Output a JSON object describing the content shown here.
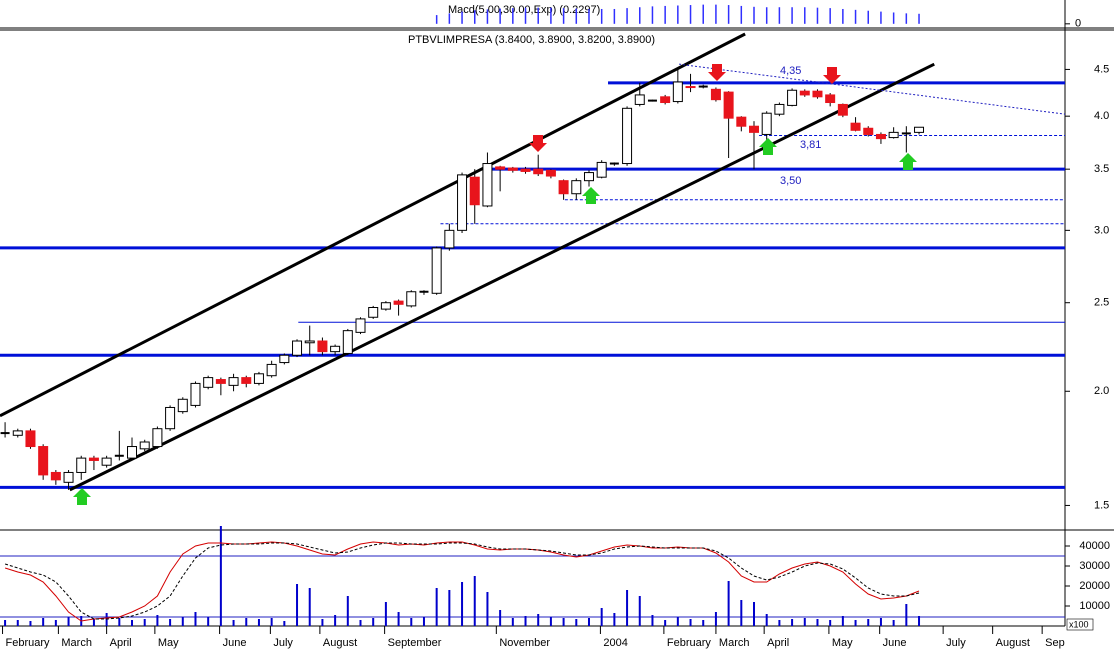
{
  "chart_data": {
    "type": "candlestick",
    "title": "PTBVLIMPRESA (3.8400, 3.8900, 3.8200, 3.8900)",
    "xlim": [
      -0.4,
      83.5
    ],
    "xticks": [
      {
        "value": -0.2,
        "label": "February"
      },
      {
        "value": 4.2,
        "label": "March"
      },
      {
        "value": 8.0,
        "label": "April"
      },
      {
        "value": 11.8,
        "label": "May"
      },
      {
        "value": 16.9,
        "label": "June"
      },
      {
        "value": 20.9,
        "label": "July"
      },
      {
        "value": 24.8,
        "label": "August"
      },
      {
        "value": 29.9,
        "label": "September"
      },
      {
        "value": 38.7,
        "label": "November"
      },
      {
        "value": 46.9,
        "label": "2004"
      },
      {
        "value": 51.9,
        "label": "February"
      },
      {
        "value": 56.0,
        "label": "March"
      },
      {
        "value": 59.8,
        "label": "April"
      },
      {
        "value": 64.9,
        "label": "May"
      },
      {
        "value": 68.9,
        "label": "June"
      },
      {
        "value": 73.9,
        "label": "July"
      },
      {
        "value": 77.8,
        "label": "August"
      },
      {
        "value": 81.7,
        "label": "Sep"
      }
    ],
    "ylim": [
      1.41,
      4.97
    ],
    "yscale": "log",
    "yticks": [
      1.5,
      {
        "value": 2.0,
        "label": "2.0"
      },
      2.5,
      {
        "value": 3.0,
        "label": "3.0"
      },
      3.5,
      {
        "value": 4.0,
        "label": "4.0"
      },
      4.5
    ],
    "up_color": "#ffffff",
    "down_color": "#e8141c",
    "open": [
      1.8,
      1.79,
      1.81,
      1.74,
      1.63,
      1.59,
      1.63,
      1.69,
      1.66,
      1.7,
      1.69,
      1.73,
      1.74,
      1.82,
      1.9,
      1.93,
      2.02,
      2.06,
      2.03,
      2.07,
      2.04,
      2.08,
      2.15,
      2.19,
      2.26,
      2.27,
      2.21,
      2.2,
      2.32,
      2.41,
      2.46,
      2.51,
      2.48,
      2.57,
      2.56,
      2.87,
      3.0,
      3.43,
      3.19,
      3.52,
      3.51,
      3.5,
      3.5,
      3.49,
      3.4,
      3.29,
      3.4,
      3.43,
      3.55,
      3.55,
      4.12,
      4.16,
      4.2,
      4.15,
      4.31,
      4.31,
      4.28,
      4.25,
      3.99,
      3.9,
      3.82,
      4.02,
      4.11,
      4.26,
      4.26,
      4.22,
      4.12,
      3.93,
      3.88,
      3.82,
      3.79,
      3.83,
      3.84
    ],
    "high": [
      1.85,
      1.82,
      1.82,
      1.75,
      1.64,
      1.64,
      1.7,
      1.7,
      1.7,
      1.81,
      1.78,
      1.77,
      1.83,
      1.93,
      1.97,
      2.05,
      2.08,
      2.07,
      2.09,
      2.08,
      2.1,
      2.16,
      2.2,
      2.28,
      2.36,
      2.29,
      2.25,
      2.34,
      2.41,
      2.48,
      2.51,
      2.52,
      2.58,
      2.58,
      2.88,
      3.05,
      3.47,
      3.5,
      3.65,
      3.53,
      3.52,
      3.52,
      3.63,
      3.5,
      3.41,
      3.42,
      3.49,
      3.58,
      3.56,
      4.1,
      4.35,
      4.17,
      4.22,
      4.5,
      4.45,
      4.33,
      4.3,
      4.26,
      4.0,
      3.95,
      4.05,
      4.14,
      4.29,
      4.28,
      4.28,
      4.24,
      4.13,
      3.99,
      3.9,
      3.84,
      3.89,
      3.9,
      3.89
    ],
    "low": [
      1.78,
      1.78,
      1.73,
      1.6,
      1.58,
      1.56,
      1.6,
      1.64,
      1.65,
      1.68,
      1.68,
      1.72,
      1.73,
      1.81,
      1.89,
      1.92,
      2.01,
      1.98,
      2.0,
      2.02,
      2.03,
      2.07,
      2.14,
      2.18,
      2.19,
      2.19,
      2.19,
      2.19,
      2.31,
      2.4,
      2.45,
      2.42,
      2.47,
      2.55,
      2.55,
      2.85,
      2.98,
      3.05,
      3.18,
      3.31,
      3.47,
      3.46,
      3.44,
      3.42,
      3.24,
      3.24,
      3.35,
      3.42,
      3.53,
      3.53,
      4.1,
      4.15,
      4.12,
      4.13,
      4.25,
      4.29,
      4.15,
      3.6,
      3.85,
      3.5,
      3.7,
      4.0,
      4.1,
      4.2,
      4.18,
      4.1,
      3.99,
      3.85,
      3.8,
      3.73,
      3.78,
      3.65,
      3.82
    ],
    "close": [
      1.8,
      1.81,
      1.74,
      1.62,
      1.6,
      1.63,
      1.69,
      1.68,
      1.69,
      1.7,
      1.74,
      1.76,
      1.82,
      1.92,
      1.96,
      2.04,
      2.07,
      2.04,
      2.07,
      2.04,
      2.09,
      2.14,
      2.19,
      2.27,
      2.27,
      2.21,
      2.24,
      2.33,
      2.4,
      2.47,
      2.5,
      2.49,
      2.57,
      2.57,
      2.87,
      3.0,
      3.45,
      3.2,
      3.55,
      3.5,
      3.49,
      3.48,
      3.46,
      3.44,
      3.29,
      3.4,
      3.47,
      3.56,
      3.55,
      4.08,
      4.22,
      4.16,
      4.14,
      4.36,
      4.3,
      4.31,
      4.17,
      3.98,
      3.9,
      3.84,
      4.03,
      4.12,
      4.27,
      4.22,
      4.2,
      4.14,
      4.01,
      3.86,
      3.82,
      3.78,
      3.84,
      3.83,
      3.89
    ],
    "hlines": [
      {
        "y": 4.35,
        "from": 47.5,
        "style": "thick"
      },
      {
        "y": 3.5,
        "from": 37.9,
        "style": "thick"
      },
      {
        "y": 2.87,
        "from": -0.4,
        "style": "thick"
      },
      {
        "y": 2.19,
        "from": -0.4,
        "style": "thick"
      },
      {
        "y": 1.57,
        "from": -0.4,
        "style": "thick"
      },
      {
        "y": 2.38,
        "from": 23.1,
        "style": "thin"
      },
      {
        "y": 3.81,
        "from": 59.4,
        "style": "dashed"
      },
      {
        "y": 3.24,
        "from": 44.1,
        "style": "dashed"
      },
      {
        "y": 3.05,
        "from": 34.3,
        "style": "dashed"
      }
    ],
    "trendlines": [
      {
        "x": [
          -0.4,
          58.3
        ],
        "y": [
          1.88,
          4.92
        ],
        "color": "#000000"
      },
      {
        "x": [
          5.1,
          73.2
        ],
        "y": [
          1.56,
          4.56
        ],
        "color": "#000000"
      },
      {
        "x": [
          53.1,
          83.5
        ],
        "y": [
          4.56,
          4.02
        ],
        "color": "#2020c0",
        "dotted": true
      }
    ],
    "annotations": [
      "4,35",
      "3,81",
      "3,50"
    ],
    "volume": {
      "color": "#0000cc",
      "unit": "x100",
      "ylim": [
        0,
        48000
      ],
      "yticks": [
        10000,
        20000,
        30000,
        40000
      ],
      "levels": [
        35000,
        4500
      ],
      "values": [
        3000,
        3000,
        2500,
        4000,
        3000,
        4500,
        5000,
        3500,
        6500,
        4000,
        3000,
        3500,
        5500,
        3500,
        4500,
        7000,
        4500,
        50000,
        3000,
        4000,
        3500,
        4000,
        2500,
        21000,
        19000,
        3500,
        5500,
        15000,
        3000,
        4000,
        12000,
        7000,
        4000,
        4500,
        19000,
        18000,
        22000,
        25000,
        17000,
        8000,
        4000,
        5000,
        6000,
        4500,
        4000,
        3500,
        4000,
        9000,
        6500,
        18000,
        15000,
        5500,
        3000,
        4500,
        3500,
        3000,
        7000,
        22500,
        13000,
        12000,
        6000,
        3000,
        3500,
        4000,
        3500,
        3000,
        5000,
        3000,
        3500,
        4000,
        3000,
        11000,
        5000
      ]
    },
    "stochastic": {
      "series": [
        {
          "color": "#d40000",
          "values": [
            29000,
            27000,
            25500,
            22000,
            15000,
            7000,
            2500,
            3500,
            4000,
            4500,
            7000,
            10000,
            15000,
            27000,
            36000,
            40000,
            41500,
            41500,
            41000,
            41000,
            41500,
            42000,
            41500,
            40000,
            38000,
            36000,
            35500,
            38500,
            41000,
            42000,
            41500,
            40500,
            41000,
            40500,
            41500,
            42000,
            42000,
            40500,
            38500,
            38000,
            38500,
            38500,
            38000,
            37000,
            35500,
            34500,
            35500,
            37500,
            39500,
            40500,
            40000,
            39000,
            39000,
            39500,
            39000,
            39000,
            36500,
            32000,
            25000,
            22000,
            22000,
            26000,
            29000,
            31000,
            32000,
            30000,
            27000,
            21000,
            16000,
            13500,
            14000,
            15000,
            17500
          ]
        },
        {
          "color": "#000000",
          "dashed": true,
          "values": [
            31000,
            29000,
            27000,
            25500,
            22000,
            15000,
            7000,
            3500,
            3500,
            4000,
            5000,
            7000,
            10000,
            15000,
            25000,
            34000,
            39000,
            40500,
            41000,
            41000,
            41000,
            41500,
            41500,
            41000,
            39500,
            38000,
            36500,
            37000,
            39000,
            40500,
            41500,
            41500,
            41000,
            41000,
            41000,
            41500,
            41500,
            41000,
            39500,
            38500,
            38500,
            38500,
            38000,
            37500,
            36500,
            35500,
            35500,
            36500,
            38500,
            39500,
            40000,
            39500,
            39000,
            39000,
            39000,
            39000,
            37500,
            34000,
            29000,
            25000,
            23000,
            24500,
            27000,
            30000,
            31500,
            31000,
            28500,
            24000,
            19000,
            16000,
            15000,
            15000,
            16500
          ]
        }
      ]
    },
    "macd": {
      "label": "Macd(5.00,30.00,Exp) (0.2297)",
      "color": "#3030ff",
      "ylim": [
        -0.05,
        0.5
      ],
      "yticks": [
        0
      ],
      "values": [
        null,
        null,
        null,
        null,
        null,
        null,
        null,
        null,
        null,
        null,
        null,
        null,
        null,
        null,
        null,
        null,
        null,
        null,
        null,
        null,
        null,
        null,
        null,
        null,
        null,
        null,
        null,
        null,
        null,
        null,
        null,
        null,
        null,
        null,
        0.2,
        0.24,
        0.28,
        0.31,
        0.33,
        0.35,
        0.36,
        0.37,
        0.37,
        0.37,
        0.36,
        0.35,
        0.34,
        0.34,
        0.34,
        0.36,
        0.38,
        0.4,
        0.41,
        0.42,
        0.43,
        0.44,
        0.44,
        0.43,
        0.41,
        0.39,
        0.38,
        0.38,
        0.38,
        0.38,
        0.37,
        0.36,
        0.34,
        0.32,
        0.3,
        0.28,
        0.26,
        0.24,
        0.23
      ]
    }
  }
}
